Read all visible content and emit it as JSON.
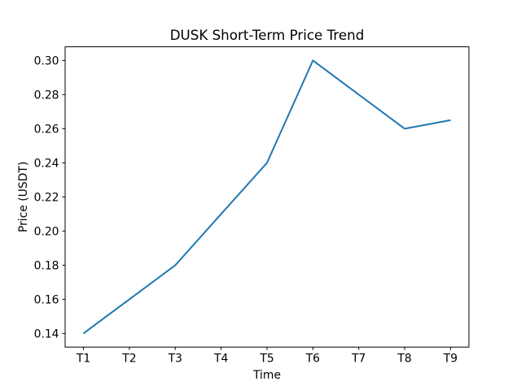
{
  "figure": {
    "background": "#ffffff"
  },
  "chart_data": {
    "type": "line",
    "title": "DUSK Short-Term Price Trend",
    "xlabel": "Time",
    "ylabel": "Price (USDT)",
    "categories": [
      "T1",
      "T2",
      "T3",
      "T4",
      "T5",
      "T6",
      "T7",
      "T8",
      "T9"
    ],
    "values": [
      0.14,
      0.16,
      0.18,
      0.21,
      0.24,
      0.3,
      0.28,
      0.26,
      0.265
    ],
    "ytick_labels": [
      "0.14",
      "0.16",
      "0.18",
      "0.20",
      "0.22",
      "0.24",
      "0.26",
      "0.28",
      "0.30"
    ],
    "ytick_values": [
      0.14,
      0.16,
      0.18,
      0.2,
      0.22,
      0.24,
      0.26,
      0.28,
      0.3
    ],
    "ylim": [
      0.132,
      0.308
    ],
    "x_margin": 0.4,
    "line_color": "#1f77b4",
    "axes_color": "#000000",
    "text_color": "#000000",
    "background": "#ffffff",
    "grid": false,
    "legend": false
  }
}
